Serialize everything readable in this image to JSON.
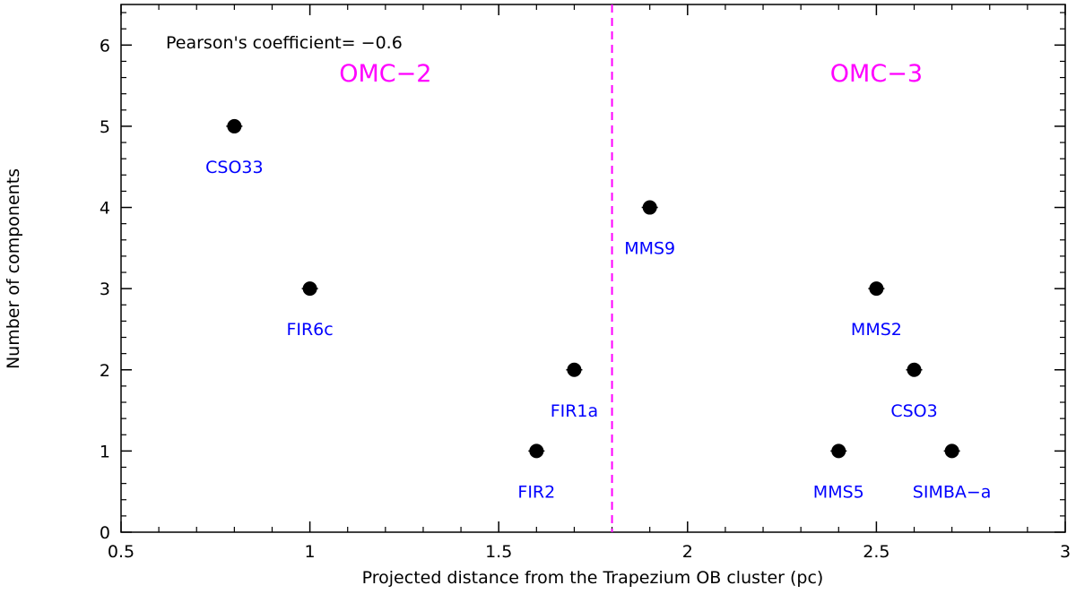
{
  "chart_data": {
    "type": "scatter",
    "title": "",
    "xlabel": "Projected distance from the Trapezium OB cluster (pc)",
    "ylabel": "Number of components",
    "xlim": [
      0.5,
      3
    ],
    "ylim": [
      0,
      6.5
    ],
    "xticks": [
      0.5,
      1,
      1.5,
      2,
      2.5,
      3
    ],
    "xtick_labels": [
      "0.5",
      "1",
      "1.5",
      "2",
      "2.5",
      "3"
    ],
    "yticks": [
      0,
      1,
      2,
      3,
      4,
      5,
      6
    ],
    "ytick_labels": [
      "0",
      "1",
      "2",
      "3",
      "4",
      "5",
      "6"
    ],
    "grid": false,
    "points": [
      {
        "name": "CSO33",
        "x": 0.8,
        "y": 5
      },
      {
        "name": "FIR6c",
        "x": 1.0,
        "y": 3
      },
      {
        "name": "FIR1a",
        "x": 1.7,
        "y": 2
      },
      {
        "name": "FIR2",
        "x": 1.6,
        "y": 1
      },
      {
        "name": "MMS9",
        "x": 1.9,
        "y": 4
      },
      {
        "name": "MMS2",
        "x": 2.5,
        "y": 3
      },
      {
        "name": "CSO3",
        "x": 2.6,
        "y": 2
      },
      {
        "name": "MMS5",
        "x": 2.4,
        "y": 1
      },
      {
        "name": "SIMBA−a",
        "x": 2.7,
        "y": 1
      }
    ],
    "divider": {
      "x": 1.8,
      "style": "dashed",
      "color": "#ff00ff"
    },
    "regions": [
      {
        "label": "OMC−2",
        "x": 1.2,
        "y": 5.55
      },
      {
        "label": "OMC−3",
        "x": 2.5,
        "y": 5.55
      }
    ],
    "annotation": "Pearson's coefficient= −0.6",
    "colors": {
      "points": "#000000",
      "point_labels": "#0000ff",
      "regions": "#ff00ff",
      "axes": "#000000"
    }
  }
}
